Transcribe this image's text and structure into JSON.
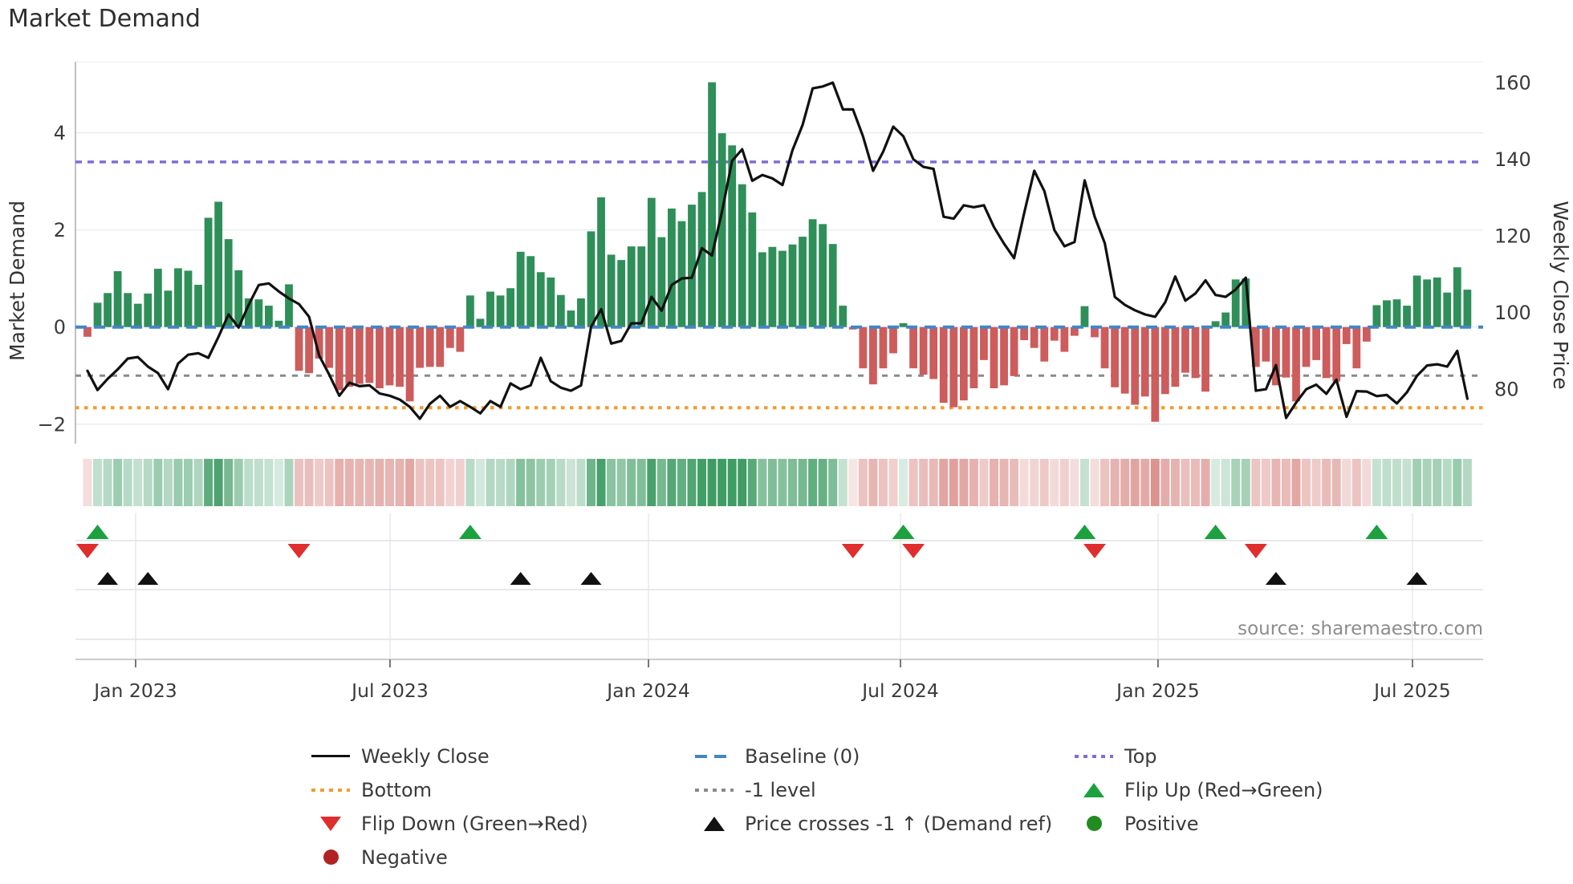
{
  "title": "Market Demand",
  "source_text": "source: sharemaestro.com",
  "colors": {
    "bar_positive": "#2e8f58",
    "bar_negative": "#cd5c5c",
    "price_line": "#111111",
    "baseline": "#4186c5",
    "top_line": "#7d6fd4",
    "bottom_line": "#f29b2c",
    "minus1_line": "#8a8a8a",
    "flip_up": "#1ba13e",
    "flip_down": "#e02d2d",
    "positive_dot": "#228b22",
    "negative_dot": "#b22222",
    "cross_marker": "#111111",
    "heatmap_green": "47,148,88",
    "heatmap_red": "205,100,95"
  },
  "chart_data": {
    "type": "bar+line",
    "title": "Market Demand",
    "x_axis": {
      "tick_labels": [
        "Jan 2023",
        "Jul 2023",
        "Jan 2024",
        "Jul 2024",
        "Jan 2025",
        "Jul 2025"
      ],
      "tick_weeks": [
        4.78,
        30.04,
        55.7,
        80.72,
        106.29,
        131.55
      ]
    },
    "y_left": {
      "label": "Market Demand",
      "ticks": [
        4,
        2,
        0,
        -2
      ],
      "tick_labels": [
        "4",
        "2",
        "0",
        "−2"
      ],
      "range": [
        -2.4,
        5.46
      ],
      "grid": true
    },
    "y_right": {
      "label": "Weekly Close Price",
      "ticks": [
        160,
        140,
        120,
        100,
        80
      ],
      "tick_labels": [
        "160",
        "140",
        "120",
        "100",
        "80"
      ],
      "range": [
        65.8,
        165.4
      ]
    },
    "reference_lines": {
      "baseline": {
        "label": "Baseline (0)",
        "value": 0
      },
      "top": {
        "label": "Top",
        "value": 3.4
      },
      "bottom": {
        "label": "Bottom",
        "value": -1.66
      },
      "minus1": {
        "label": "-1 level",
        "value": -1.0
      }
    },
    "series": [
      {
        "name": "Market Demand",
        "type": "bar",
        "values": [
          -0.2,
          0.5,
          0.7,
          1.15,
          0.7,
          0.48,
          0.69,
          1.2,
          0.75,
          1.21,
          1.16,
          0.87,
          2.25,
          2.58,
          1.81,
          1.17,
          0.59,
          0.57,
          0.44,
          0.13,
          0.88,
          -0.9,
          -0.95,
          -0.65,
          -0.84,
          -1.3,
          -1.23,
          -1.17,
          -1.15,
          -1.26,
          -1.2,
          -1.23,
          -1.53,
          -0.84,
          -0.82,
          -0.82,
          -0.43,
          -0.51,
          0.65,
          0.17,
          0.73,
          0.65,
          0.8,
          1.55,
          1.46,
          1.13,
          1.02,
          0.66,
          0.34,
          0.59,
          1.97,
          2.67,
          1.49,
          1.38,
          1.66,
          1.66,
          2.66,
          1.85,
          2.44,
          2.18,
          2.52,
          2.78,
          5.04,
          3.99,
          3.74,
          2.94,
          2.36,
          1.54,
          1.65,
          1.57,
          1.7,
          1.86,
          2.22,
          2.12,
          1.71,
          0.44,
          -0.05,
          -0.85,
          -1.18,
          -0.85,
          -0.54,
          0.08,
          -0.85,
          -0.98,
          -1.07,
          -1.56,
          -1.65,
          -1.51,
          -1.26,
          -0.68,
          -1.26,
          -1.2,
          -1.01,
          -0.27,
          -0.43,
          -0.71,
          -0.28,
          -0.51,
          -0.18,
          0.43,
          -0.21,
          -0.85,
          -1.24,
          -1.37,
          -1.6,
          -1.43,
          -1.95,
          -1.38,
          -1.23,
          -0.94,
          -1.05,
          -1.33,
          0.12,
          0.3,
          0.98,
          1.0,
          -0.82,
          -0.71,
          -1.2,
          -1.04,
          -1.53,
          -0.82,
          -0.68,
          -1.05,
          -1.12,
          -0.35,
          -0.85,
          -0.3,
          0.45,
          0.55,
          0.57,
          0.44,
          1.06,
          0.98,
          1.02,
          0.71,
          1.23,
          0.77
        ]
      },
      {
        "name": "Weekly Close",
        "type": "line",
        "values": [
          84.8,
          79.8,
          82.7,
          85.2,
          88.0,
          88.4,
          85.9,
          84.2,
          80.0,
          86.7,
          89.0,
          89.4,
          88.2,
          93.6,
          99.5,
          96.1,
          102.0,
          107.2,
          107.6,
          105.5,
          103.7,
          102.2,
          98.9,
          88.8,
          83.8,
          78.3,
          81.7,
          80.8,
          81.0,
          78.9,
          78.3,
          77.3,
          75.4,
          72.3,
          76.2,
          78.3,
          75.4,
          76.9,
          75.4,
          73.7,
          76.9,
          75.4,
          81.5,
          80.0,
          81.0,
          88.2,
          82.1,
          80.4,
          79.6,
          81.0,
          96.3,
          100.9,
          91.9,
          92.6,
          97.2,
          97.2,
          104.1,
          100.5,
          107.2,
          108.9,
          109.1,
          116.8,
          114.9,
          126.4,
          139.6,
          142.6,
          134.4,
          135.9,
          135.0,
          133.3,
          142.4,
          149.0,
          158.5,
          159.0,
          160.0,
          153.0,
          153.0,
          146.0,
          137.0,
          142.0,
          148.5,
          146.0,
          140.0,
          138.0,
          137.5,
          125.0,
          124.5,
          128.0,
          127.5,
          128.0,
          122.3,
          118.0,
          114.2,
          126.0,
          137.0,
          131.7,
          121.5,
          117.3,
          118.4,
          134.5,
          125.0,
          118.1,
          104.1,
          102.0,
          100.6,
          99.5,
          98.9,
          102.7,
          109.4,
          103.1,
          105.0,
          108.4,
          104.6,
          104.1,
          106.0,
          109.1,
          79.6,
          80.0,
          86.3,
          72.5,
          76.5,
          80.0,
          81.2,
          78.8,
          82.5,
          72.8,
          79.5,
          79.4,
          78.2,
          78.5,
          76.3,
          79.2,
          83.5,
          86.2,
          86.5,
          85.9,
          90.0,
          77.5
        ]
      }
    ],
    "markers": {
      "flip_up_weeks": [
        1,
        38,
        81,
        99,
        112,
        128
      ],
      "flip_down_weeks": [
        0,
        21,
        76,
        82,
        100,
        116
      ],
      "price_cross_weeks": [
        2,
        6,
        43,
        50,
        118,
        132
      ]
    },
    "heatmap": {
      "note": "weekly demand sign/intensity strip",
      "derived_from": "Market Demand bar values"
    },
    "source": "source: sharemaestro.com"
  },
  "legend": {
    "items": [
      {
        "id": "weekly-close",
        "swatch": "solid-line",
        "color": "#111111",
        "label": "Weekly Close"
      },
      {
        "id": "baseline",
        "swatch": "dashed-line",
        "color": "#4186c5",
        "label": "Baseline (0)"
      },
      {
        "id": "top",
        "swatch": "dotted-line",
        "color": "#7d6fd4",
        "label": "Top"
      },
      {
        "id": "bottom",
        "swatch": "dotted-line",
        "color": "#f29b2c",
        "label": "Bottom"
      },
      {
        "id": "minus1-level",
        "swatch": "dotted-line",
        "color": "#8a8a8a",
        "label": "-1 level"
      },
      {
        "id": "flip-up",
        "swatch": "triangle-up",
        "color": "#1ba13e",
        "label": "Flip Up (Red→Green)"
      },
      {
        "id": "flip-down",
        "swatch": "triangle-down",
        "color": "#e02d2d",
        "label": "Flip Down (Green→Red)"
      },
      {
        "id": "price-crosses",
        "swatch": "triangle-up",
        "color": "#111111",
        "label": "Price crosses -1 ↑ (Demand ref)"
      },
      {
        "id": "positive",
        "swatch": "circle",
        "color": "#228b22",
        "label": "Positive"
      },
      {
        "id": "negative",
        "swatch": "circle",
        "color": "#b22222",
        "label": "Negative"
      }
    ]
  }
}
